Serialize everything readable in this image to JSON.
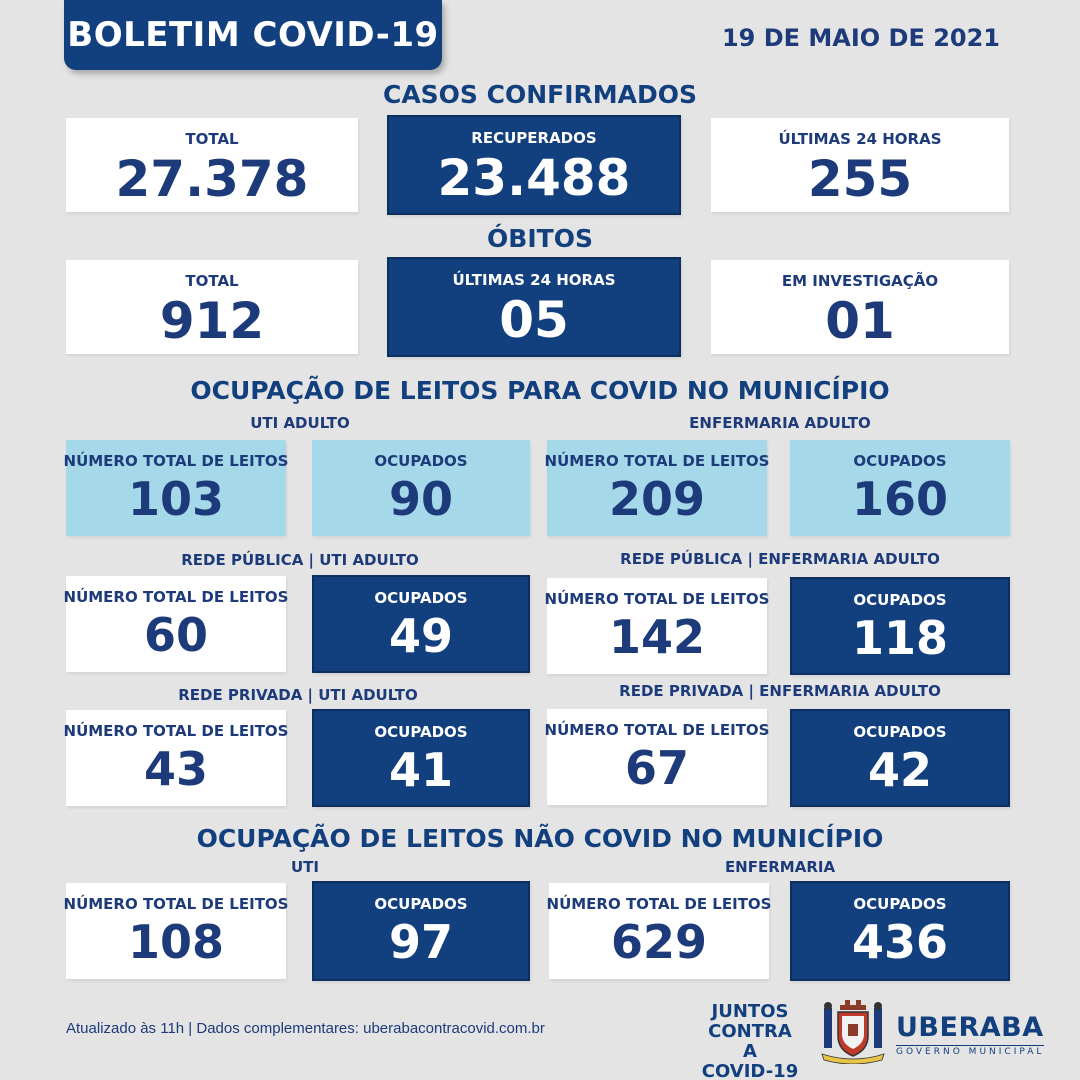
{
  "header": {
    "title": "BOLETIM COVID-19",
    "date": "19 DE MAIO DE 2021"
  },
  "casos": {
    "title": "CASOS CONFIRMADOS",
    "total": {
      "label": "TOTAL",
      "value": "27.378"
    },
    "recuperados": {
      "label": "RECUPERADOS",
      "value": "23.488"
    },
    "ultimas": {
      "label": "ÚLTIMAS 24 HORAS",
      "value": "255"
    }
  },
  "obitos": {
    "title": "ÓBITOS",
    "total": {
      "label": "TOTAL",
      "value": "912"
    },
    "ultimas": {
      "label": "ÚLTIMAS 24 HORAS",
      "value": "05"
    },
    "investigacao": {
      "label": "EM INVESTIGAÇÃO",
      "value": "01"
    }
  },
  "covid_leitos": {
    "title": "OCUPAÇÃO DE LEITOS PARA COVID NO MUNICÍPIO",
    "uti_label": "UTI ADULTO",
    "enf_label": "ENFERMARIA ADULTO",
    "total_label": "NÚMERO TOTAL DE LEITOS",
    "ocup_label": "OCUPADOS",
    "uti_total": "103",
    "uti_ocup": "90",
    "enf_total": "209",
    "enf_ocup": "160",
    "pub_uti_label": "REDE PÚBLICA | UTI ADULTO",
    "pub_enf_label": "REDE PÚBLICA | ENFERMARIA ADULTO",
    "pub_uti_total": "60",
    "pub_uti_ocup": "49",
    "pub_enf_total": "142",
    "pub_enf_ocup": "118",
    "priv_uti_label": "REDE PRIVADA | UTI ADULTO",
    "priv_enf_label": "REDE PRIVADA | ENFERMARIA ADULTO",
    "priv_uti_total": "43",
    "priv_uti_ocup": "41",
    "priv_enf_total": "67",
    "priv_enf_ocup": "42"
  },
  "nao_covid": {
    "title": "OCUPAÇÃO DE LEITOS NÃO COVID NO MUNICÍPIO",
    "uti_label": "UTI",
    "enf_label": "ENFERMARIA",
    "uti_total": "108",
    "uti_ocup": "97",
    "enf_total": "629",
    "enf_ocup": "436"
  },
  "footer": {
    "updated": "Atualizado às 11h | Dados complementares: uberabacontracovid.com.br",
    "juntos_1": "JUNTOS",
    "juntos_2": "CONTRA A",
    "juntos_3": "COVID-19",
    "city": "UBERABA",
    "gov": "GOVERNO MUNICIPAL"
  },
  "colors": {
    "navy": "#123f7d",
    "light_blue": "#a5d9e9",
    "background": "#e4e4e4"
  }
}
